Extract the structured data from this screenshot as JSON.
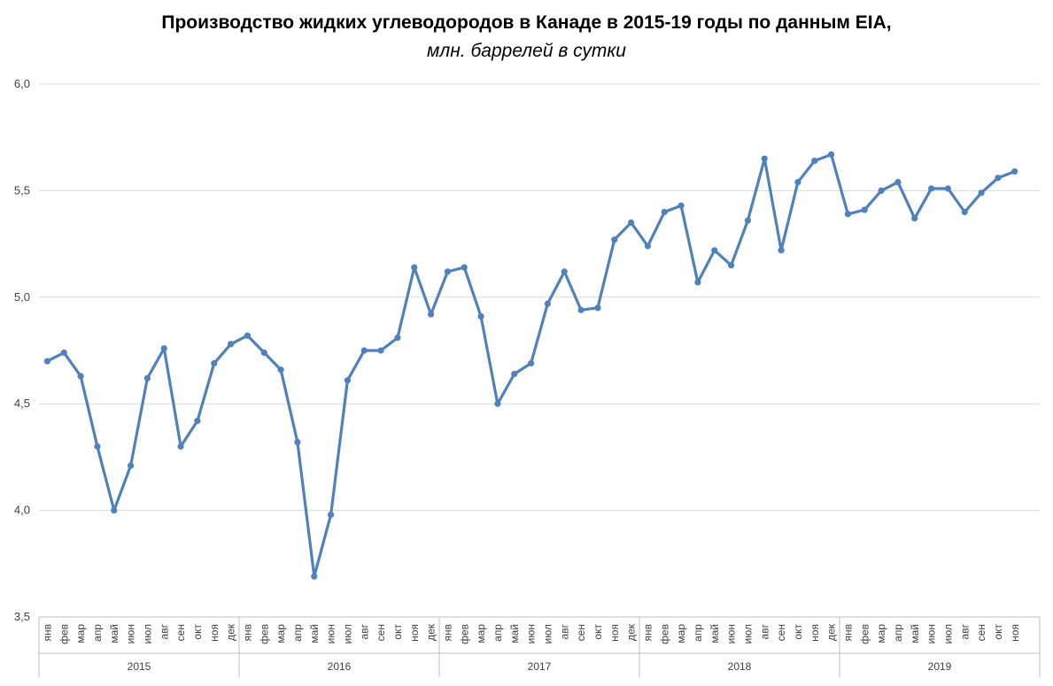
{
  "chart_data": {
    "type": "line",
    "title": "Производство жидких углеводородов в Канаде в 2015-19 годы по данным EIA,",
    "subtitle": "млн. баррелей в сутки",
    "xlabel": "",
    "ylabel": "",
    "ylim": [
      3.5,
      6.0
    ],
    "yticks": [
      "3,5",
      "4,0",
      "4,5",
      "5,0",
      "5,5",
      "6,0"
    ],
    "ytick_values": [
      3.5,
      4.0,
      4.5,
      5.0,
      5.5,
      6.0
    ],
    "grid": true,
    "line_color": "#4f81bd",
    "months": [
      "янв",
      "фев",
      "мар",
      "апр",
      "май",
      "июн",
      "июл",
      "авг",
      "сен",
      "окт",
      "ноя",
      "дек"
    ],
    "years": [
      {
        "year": "2015",
        "months": 12
      },
      {
        "year": "2016",
        "months": 12
      },
      {
        "year": "2017",
        "months": 12
      },
      {
        "year": "2018",
        "months": 12
      },
      {
        "year": "2019",
        "months": 11
      }
    ],
    "series": [
      {
        "values": [
          4.7,
          4.74,
          4.63,
          4.3,
          4.0,
          4.21,
          4.62,
          4.76,
          4.3,
          4.42,
          4.69,
          4.78,
          4.82,
          4.74,
          4.66,
          4.32,
          3.69,
          3.98,
          4.61,
          4.75,
          4.75,
          4.81,
          5.14,
          4.92,
          5.12,
          5.14,
          4.91,
          4.5,
          4.64,
          4.69,
          4.97,
          5.12,
          4.94,
          4.95,
          5.27,
          5.35,
          5.24,
          5.4,
          5.43,
          5.07,
          5.22,
          5.15,
          5.36,
          5.65,
          5.22,
          5.54,
          5.64,
          5.67,
          5.39,
          5.41,
          5.5,
          5.54,
          5.37,
          5.51,
          5.51,
          5.4,
          5.49,
          5.56,
          5.59
        ]
      }
    ]
  }
}
